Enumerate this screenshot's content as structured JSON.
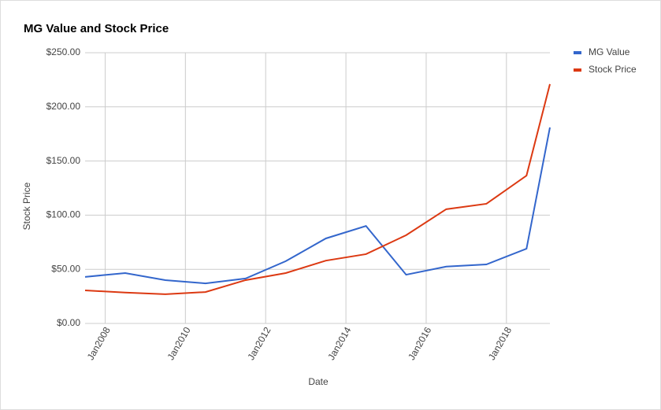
{
  "chart_data": {
    "type": "line",
    "title": "MG Value and Stock Price",
    "x_label": "Date",
    "y_label": "Stock Price",
    "x": [
      "2007-07",
      "2008-07",
      "2009-07",
      "2010-07",
      "2011-07",
      "2012-07",
      "2013-07",
      "2014-07",
      "2015-07",
      "2016-07",
      "2017-07",
      "2018-07",
      "2019-02"
    ],
    "series": [
      {
        "name": "MG Value",
        "color": "#3366cc",
        "values": [
          43,
          46.5,
          40,
          37,
          41.5,
          57.5,
          78.5,
          90,
          45,
          52.5,
          54.5,
          69,
          181
        ]
      },
      {
        "name": "Stock Price",
        "color": "#dc3912",
        "values": [
          30.5,
          28.5,
          27,
          29,
          40,
          46.5,
          58,
          64,
          81.5,
          105.5,
          110.5,
          136.5,
          221
        ]
      }
    ],
    "xlim": [
      "2007-07",
      "2019-02"
    ],
    "xticks": [
      {
        "value": "2008-01",
        "label": "Jan2008"
      },
      {
        "value": "2010-01",
        "label": "Jan2010"
      },
      {
        "value": "2012-01",
        "label": "Jan2012"
      },
      {
        "value": "2014-01",
        "label": "Jan2014"
      },
      {
        "value": "2016-01",
        "label": "Jan2016"
      },
      {
        "value": "2018-01",
        "label": "Jan2018"
      }
    ],
    "ylim": [
      0,
      250
    ],
    "yticks": [
      {
        "value": 0,
        "label": "$0.00"
      },
      {
        "value": 50,
        "label": "$50.00"
      },
      {
        "value": 100,
        "label": "$100.00"
      },
      {
        "value": 150,
        "label": "$150.00"
      },
      {
        "value": 200,
        "label": "$200.00"
      },
      {
        "value": 250,
        "label": "$250.00"
      }
    ],
    "grid": true,
    "legend": "right"
  }
}
